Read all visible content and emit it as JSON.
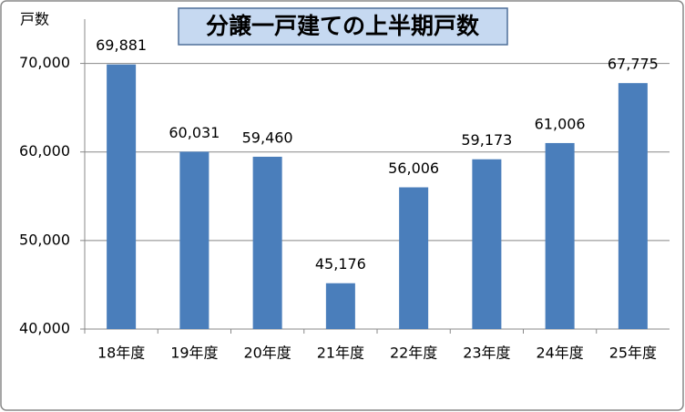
{
  "chart_data": {
    "type": "bar",
    "title": "分譲一戸建ての上半期戸数",
    "y_label": "戸数",
    "categories": [
      "18年度",
      "19年度",
      "20年度",
      "21年度",
      "22年度",
      "23年度",
      "24年度",
      "25年度"
    ],
    "values": [
      69881,
      60031,
      59460,
      45176,
      56006,
      59173,
      61006,
      67775
    ],
    "value_labels": [
      "69,881",
      "60,031",
      "59,460",
      "45,176",
      "56,006",
      "59,173",
      "61,006",
      "67,775"
    ],
    "color": "#4a7ebb",
    "ylim": [
      40000,
      75000
    ],
    "yticks": [
      {
        "value": 40000,
        "label": "40,000"
      },
      {
        "value": 50000,
        "label": "50,000"
      },
      {
        "value": 60000,
        "label": "60,000"
      },
      {
        "value": 70000,
        "label": "70,000"
      }
    ],
    "grid": true
  }
}
